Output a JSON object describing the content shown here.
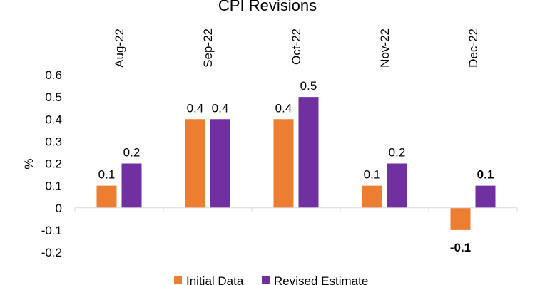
{
  "chart_data": {
    "type": "bar",
    "title": "CPI Revisions",
    "ylabel": "%",
    "xlabel": "",
    "ylim": [
      -0.2,
      0.6
    ],
    "yticks": [
      "0.6",
      "0.5",
      "0.4",
      "0.3",
      "0.2",
      "0.1",
      "0",
      "-0.1",
      "-0.2"
    ],
    "ytick_values": [
      0.6,
      0.5,
      0.4,
      0.3,
      0.2,
      0.1,
      0,
      -0.1,
      -0.2
    ],
    "categories": [
      "Aug-22",
      "Sep-22",
      "Oct-22",
      "Nov-22",
      "Dec-22"
    ],
    "category_label_position": "top, rotated vertical",
    "grid": false,
    "legend": "bottom",
    "series": [
      {
        "name": "Initial Data",
        "color": "#ED7D31",
        "values": [
          0.1,
          0.4,
          0.4,
          0.1,
          -0.1
        ],
        "labels": [
          "0.1",
          "0.4",
          "0.4",
          "0.1",
          "-0.1"
        ],
        "bold": [
          false,
          false,
          false,
          false,
          true
        ]
      },
      {
        "name": "Revised Estimate",
        "color": "#7030A0",
        "values": [
          0.2,
          0.4,
          0.5,
          0.2,
          0.1
        ],
        "labels": [
          "0.2",
          "0.4",
          "0.5",
          "0.2",
          "0.1"
        ],
        "bold": [
          false,
          false,
          false,
          false,
          true
        ]
      }
    ]
  }
}
